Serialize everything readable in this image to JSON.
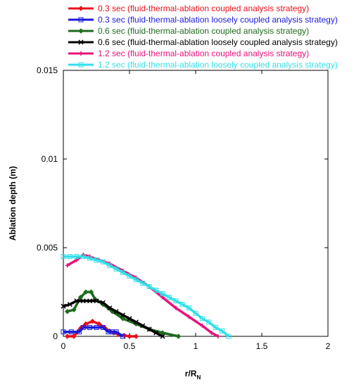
{
  "chart_data": {
    "type": "line",
    "xlabel": "r/R",
    "xlabel_sub": "N",
    "ylabel": "Ablation depth (m)",
    "xlim": [
      0,
      2
    ],
    "ylim": [
      0,
      0.015
    ],
    "xticks": [
      0,
      0.5,
      1,
      1.5,
      2
    ],
    "xtick_labels": [
      "0",
      "0.5",
      "1",
      "1.5",
      "2"
    ],
    "yticks": [
      0,
      0.005,
      0.01,
      0.015
    ],
    "ytick_labels": [
      "0",
      "0.005",
      "0.01",
      "0.015"
    ],
    "grid": false,
    "legend_position": "top",
    "series": [
      {
        "name": "0.3 sec (fluid-thermal-ablation coupled analysis strategy)",
        "color": "#e8101a",
        "marker": "diamond",
        "x": [
          0.03,
          0.08,
          0.13,
          0.17,
          0.22,
          0.27,
          0.31,
          0.35,
          0.38,
          0.42,
          0.46,
          0.5,
          0.55
        ],
        "y": [
          0.0,
          0.0,
          0.00045,
          0.0007,
          0.00085,
          0.0007,
          0.0005,
          0.0003,
          0.0002,
          0.0001,
          5e-05,
          0.0,
          0.0
        ]
      },
      {
        "name": "0.3 sec (fluid-thermal-ablation loosely coupled analysis strategy)",
        "color": "#1a1adc",
        "marker": "square",
        "x": [
          0.0,
          0.06,
          0.12,
          0.15,
          0.2,
          0.25,
          0.3,
          0.34,
          0.37,
          0.4,
          0.45
        ],
        "y": [
          0.00025,
          0.00025,
          0.00025,
          0.0005,
          0.0005,
          0.0005,
          0.0005,
          0.00025,
          0.00025,
          0.00025,
          0.0
        ]
      },
      {
        "name": "0.6 sec (fluid-thermal-ablation coupled analysis strategy)",
        "color": "#1e6b1e",
        "marker": "diamond",
        "x": [
          0.03,
          0.08,
          0.13,
          0.17,
          0.21,
          0.24,
          0.3,
          0.37,
          0.45,
          0.55,
          0.65,
          0.75,
          0.87
        ],
        "y": [
          0.0014,
          0.0015,
          0.0022,
          0.0025,
          0.0025,
          0.0021,
          0.0018,
          0.0014,
          0.001,
          0.0007,
          0.0004,
          0.0002,
          0.0
        ]
      },
      {
        "name": "0.6 sec (fluid-thermal-ablation loosely coupled analysis strategy)",
        "color": "#000000",
        "marker": "x",
        "x": [
          0.0,
          0.05,
          0.1,
          0.15,
          0.2,
          0.25,
          0.3,
          0.35,
          0.4,
          0.45,
          0.5,
          0.55,
          0.6,
          0.65,
          0.7,
          0.75
        ],
        "y": [
          0.0017,
          0.0018,
          0.002,
          0.002,
          0.002,
          0.002,
          0.0019,
          0.0016,
          0.0014,
          0.0012,
          0.001,
          0.0008,
          0.0006,
          0.0004,
          0.0002,
          0.0
        ]
      },
      {
        "name": "1.2 sec (fluid-thermal-ablation coupled analysis strategy)",
        "color": "#e8137a",
        "marker": "plus",
        "x": [
          0.03,
          0.1,
          0.15,
          0.2,
          0.27,
          0.35,
          0.45,
          0.55,
          0.65,
          0.75,
          0.85,
          0.95,
          1.05,
          1.12,
          1.17
        ],
        "y": [
          0.004,
          0.0043,
          0.0046,
          0.0045,
          0.0043,
          0.0041,
          0.0037,
          0.0033,
          0.0028,
          0.0022,
          0.0016,
          0.0011,
          0.0006,
          0.0002,
          0.0
        ]
      },
      {
        "name": "1.2 sec (fluid-thermal-ablation loosely coupled analysis strategy)",
        "color": "#33e0e8",
        "marker": "square",
        "x": [
          0.0,
          0.05,
          0.1,
          0.15,
          0.2,
          0.25,
          0.3,
          0.35,
          0.4,
          0.45,
          0.5,
          0.55,
          0.6,
          0.65,
          0.7,
          0.75,
          0.8,
          0.85,
          0.9,
          0.95,
          1.0,
          1.05,
          1.1,
          1.15,
          1.2,
          1.25
        ],
        "y": [
          0.0045,
          0.0045,
          0.0045,
          0.0045,
          0.0044,
          0.0043,
          0.0042,
          0.004,
          0.0038,
          0.0036,
          0.0034,
          0.0032,
          0.003,
          0.0028,
          0.0026,
          0.0024,
          0.0022,
          0.002,
          0.0018,
          0.0016,
          0.0013,
          0.001,
          0.0008,
          0.0005,
          0.0003,
          0.0
        ]
      }
    ]
  }
}
